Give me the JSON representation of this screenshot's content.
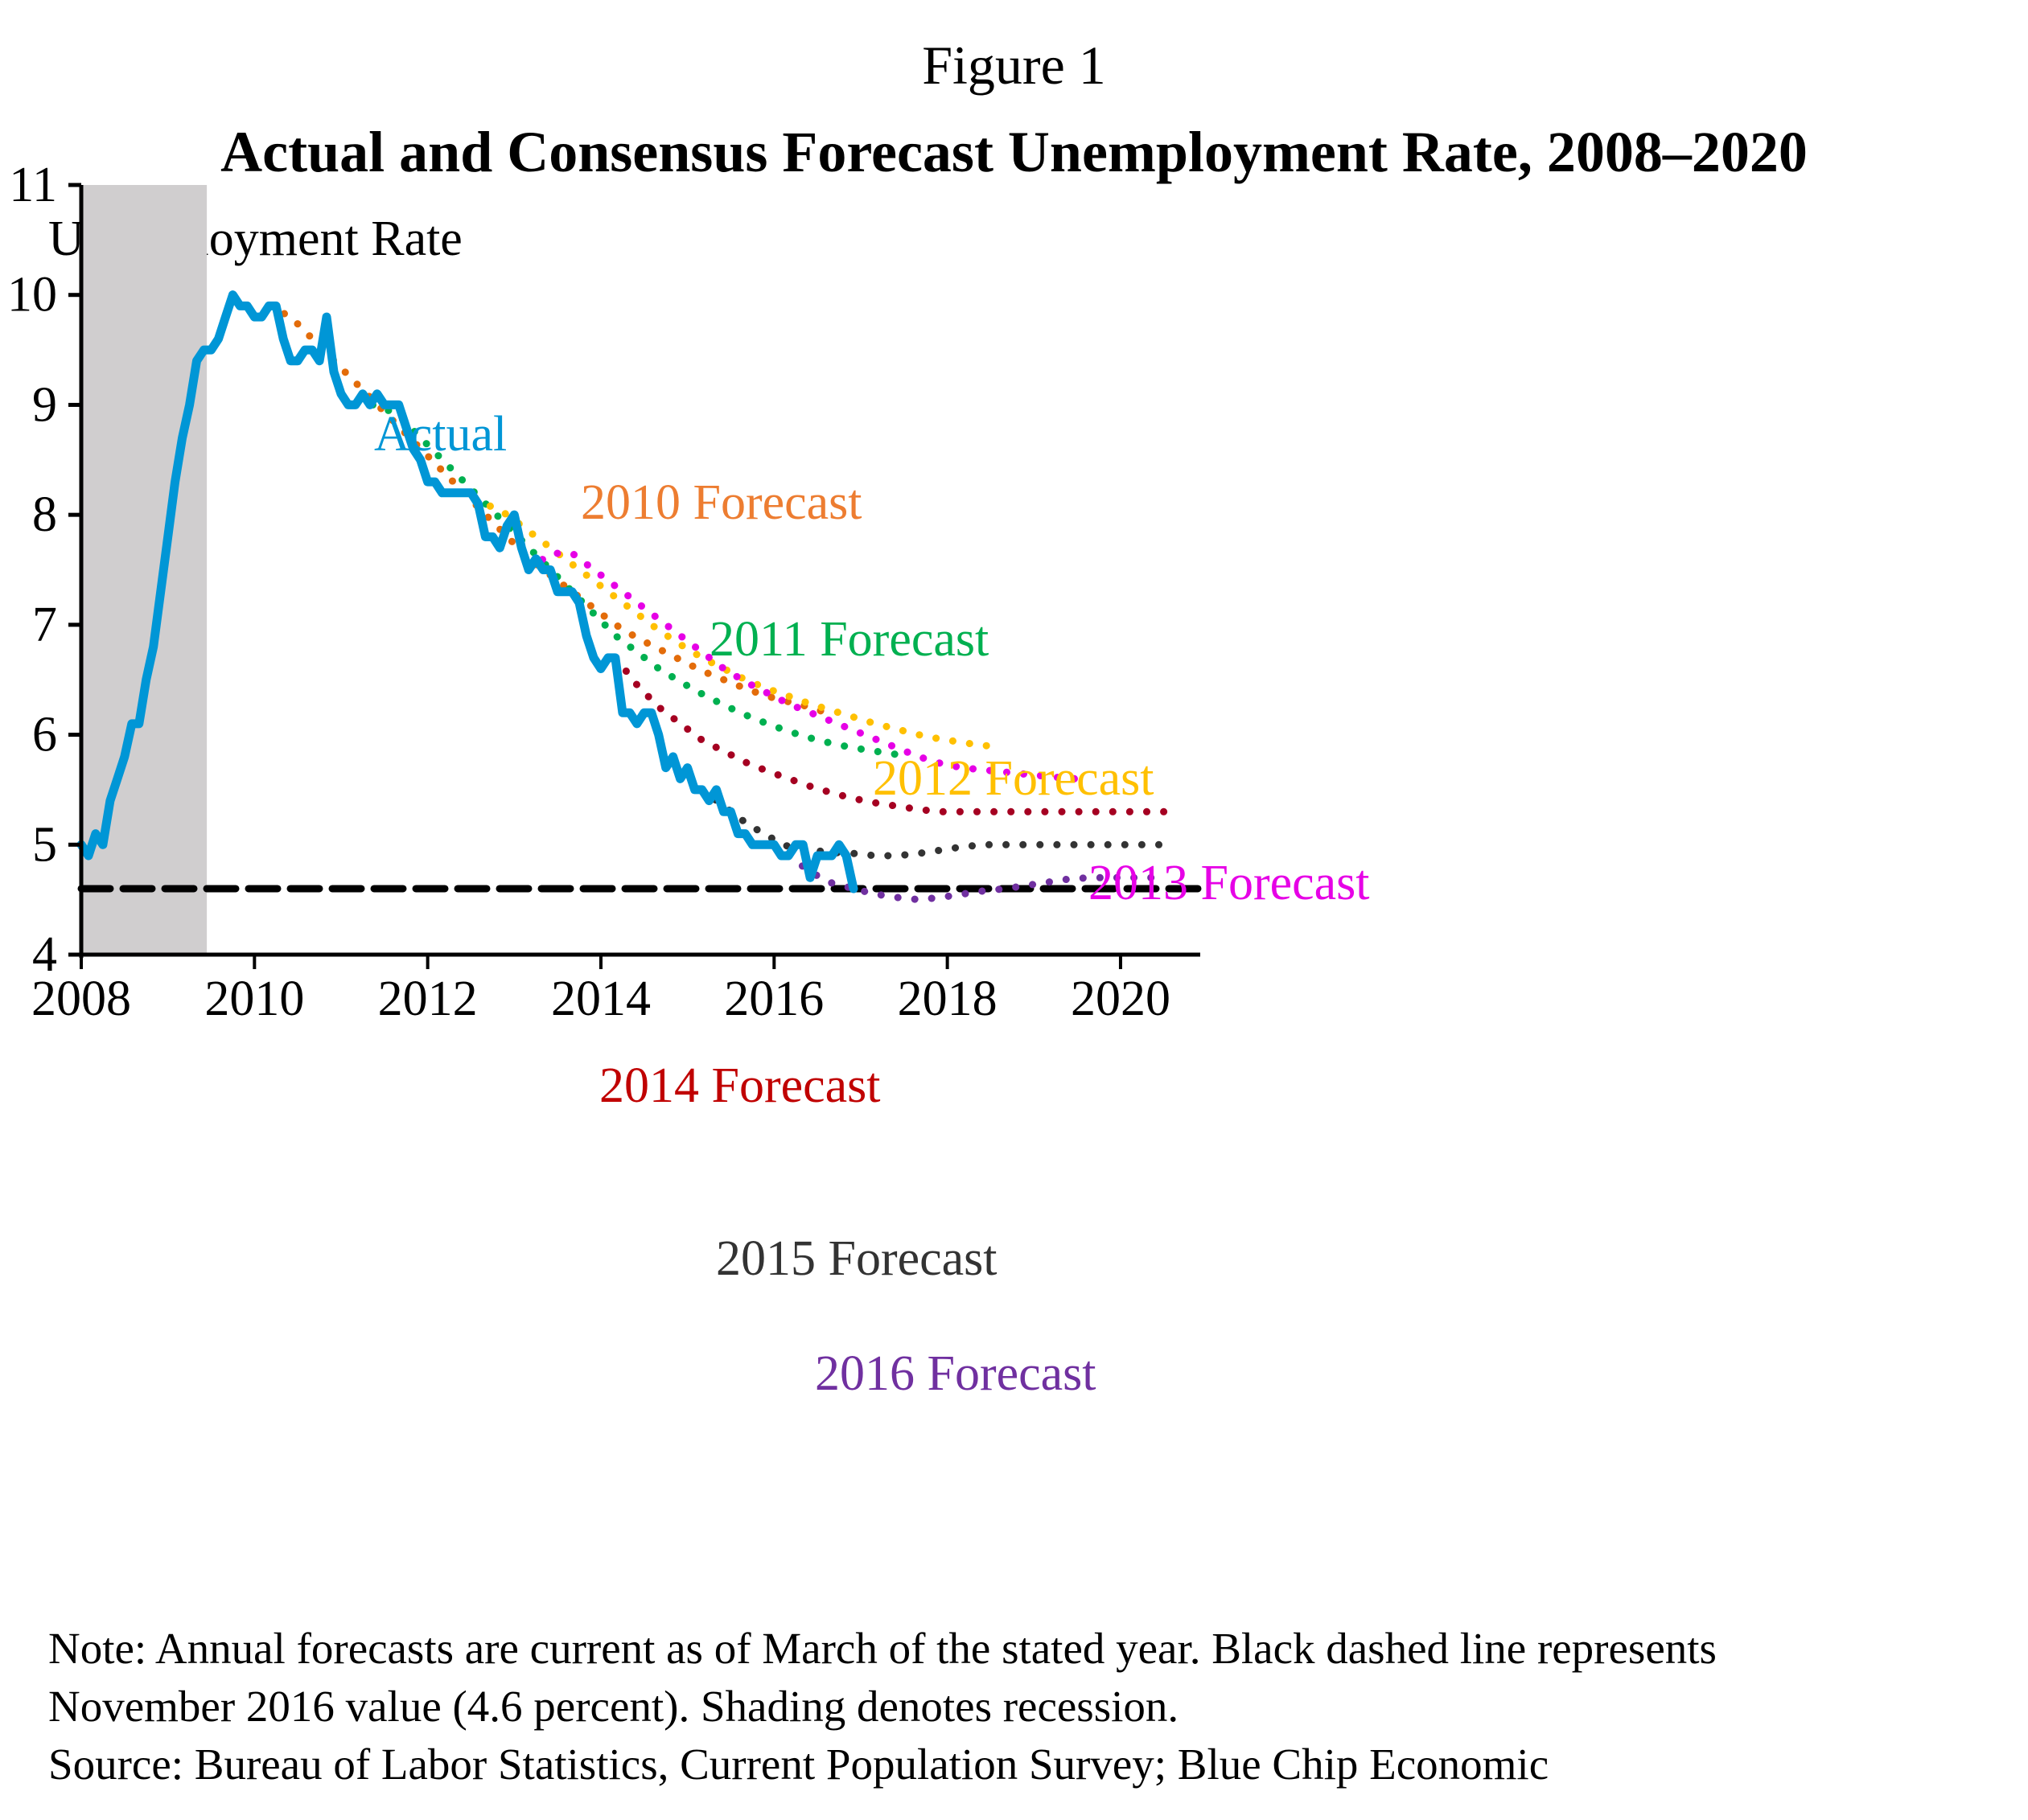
{
  "figure_number": "Figure 1",
  "chart_data": {
    "type": "line",
    "title": "Actual and Consensus Forecast Unemployment Rate, 2008–2020",
    "ylabel": "Unemployment Rate",
    "xlabel": "",
    "xlim": [
      2008,
      2020.92
    ],
    "ylim": [
      4,
      11
    ],
    "x_ticks": [
      2008,
      2010,
      2012,
      2014,
      2016,
      2018,
      2020
    ],
    "x_tick_labels": [
      "2008",
      "2010",
      "2012",
      "2014",
      "2016",
      "2018",
      "2020"
    ],
    "y_ticks": [
      4,
      5,
      6,
      7,
      8,
      9,
      10,
      11
    ],
    "y_tick_labels": [
      "4",
      "5",
      "6",
      "7",
      "8",
      "9",
      "10",
      "11"
    ],
    "grid": false,
    "legend": "inline labels",
    "recession_shading": {
      "start": 2008.0,
      "end": 2009.45,
      "color": "#d0cecf"
    },
    "reference_line": {
      "value": 4.6,
      "label": "November 2016 value (4.6 percent)",
      "color": "#000000",
      "style": "dashed"
    },
    "series": [
      {
        "name": "Actual",
        "label": "Actual",
        "style": "solid",
        "color": "#0096d6",
        "start": 2008.0,
        "step": 0.08333,
        "values": [
          5.0,
          4.9,
          5.1,
          5.0,
          5.4,
          5.6,
          5.8,
          6.1,
          6.1,
          6.5,
          6.8,
          7.3,
          7.8,
          8.3,
          8.7,
          9.0,
          9.4,
          9.5,
          9.5,
          9.6,
          9.8,
          10.0,
          9.9,
          9.9,
          9.8,
          9.8,
          9.9,
          9.9,
          9.6,
          9.4,
          9.4,
          9.5,
          9.5,
          9.4,
          9.8,
          9.3,
          9.1,
          9.0,
          9.0,
          9.1,
          9.0,
          9.1,
          9.0,
          9.0,
          9.0,
          8.8,
          8.6,
          8.5,
          8.3,
          8.3,
          8.2,
          8.2,
          8.2,
          8.2,
          8.2,
          8.1,
          7.8,
          7.8,
          7.7,
          7.9,
          8.0,
          7.7,
          7.5,
          7.6,
          7.5,
          7.5,
          7.3,
          7.3,
          7.3,
          7.2,
          6.9,
          6.7,
          6.6,
          6.7,
          6.7,
          6.2,
          6.2,
          6.1,
          6.2,
          6.2,
          6.0,
          5.7,
          5.8,
          5.6,
          5.7,
          5.5,
          5.5,
          5.4,
          5.5,
          5.3,
          5.3,
          5.1,
          5.1,
          5.0,
          5.0,
          5.0,
          5.0,
          4.9,
          4.9,
          5.0,
          5.0,
          4.7,
          4.9,
          4.9,
          4.9,
          5.0,
          4.9,
          4.6
        ]
      },
      {
        "name": "2010 Forecast",
        "label": "2010 Forecast",
        "style": "dotted",
        "color": "#e36c0a",
        "label_color": "#ed7d31",
        "x": [
          2010.17,
          2010.42,
          2010.67,
          2010.92,
          2011.17,
          2011.42,
          2011.67,
          2011.92,
          2012.17,
          2012.42,
          2012.67,
          2012.92,
          2013.17,
          2013.42,
          2013.67,
          2013.92,
          2014.17,
          2014.42,
          2014.67,
          2014.92,
          2015.17,
          2015.42,
          2015.67,
          2015.92,
          2016.17,
          2016.42,
          2016.6
        ],
        "y": [
          9.9,
          9.8,
          9.6,
          9.4,
          9.2,
          9.0,
          8.8,
          8.6,
          8.4,
          8.2,
          8.0,
          7.8,
          7.6,
          7.45,
          7.3,
          7.15,
          7.0,
          6.88,
          6.78,
          6.68,
          6.58,
          6.5,
          6.42,
          6.35,
          6.3,
          6.25,
          6.2
        ]
      },
      {
        "name": "2011 Forecast",
        "label": "2011 Forecast",
        "style": "dotted",
        "color": "#00b050",
        "label_color": "#00b050",
        "x": [
          2011.17,
          2011.42,
          2011.67,
          2011.92,
          2012.17,
          2012.42,
          2012.67,
          2012.92,
          2013.17,
          2013.42,
          2013.67,
          2013.92,
          2014.17,
          2014.42,
          2014.67,
          2014.92,
          2015.17,
          2015.42,
          2015.67,
          2015.92,
          2016.17,
          2016.42,
          2016.67,
          2016.92,
          2017.17,
          2017.42,
          2017.5
        ],
        "y": [
          9.0,
          9.0,
          8.9,
          8.7,
          8.5,
          8.3,
          8.1,
          7.9,
          7.7,
          7.5,
          7.3,
          7.1,
          6.9,
          6.75,
          6.6,
          6.48,
          6.37,
          6.27,
          6.18,
          6.1,
          6.03,
          5.97,
          5.92,
          5.88,
          5.85,
          5.82,
          5.8
        ]
      },
      {
        "name": "2012 Forecast",
        "label": "2012 Forecast",
        "style": "dotted",
        "color": "#ffc000",
        "label_color": "#ffc000",
        "x": [
          2012.17,
          2012.42,
          2012.67,
          2012.92,
          2013.17,
          2013.42,
          2013.67,
          2013.92,
          2014.17,
          2014.42,
          2014.67,
          2014.92,
          2015.17,
          2015.42,
          2015.67,
          2015.92,
          2016.17,
          2016.42,
          2016.67,
          2016.92,
          2017.17,
          2017.42,
          2017.67,
          2017.92,
          2018.17,
          2018.42,
          2018.5
        ],
        "y": [
          8.2,
          8.2,
          8.1,
          8.0,
          7.85,
          7.7,
          7.55,
          7.4,
          7.25,
          7.1,
          6.95,
          6.82,
          6.7,
          6.6,
          6.5,
          6.42,
          6.35,
          6.28,
          6.22,
          6.16,
          6.1,
          6.05,
          6.0,
          5.96,
          5.93,
          5.9,
          5.9
        ]
      },
      {
        "name": "2013 Forecast",
        "label": "2013 Forecast",
        "style": "dotted",
        "color": "#e600e6",
        "label_color": "#e600e6",
        "x": [
          2013.17,
          2013.42,
          2013.67,
          2013.92,
          2014.17,
          2014.42,
          2014.67,
          2014.92,
          2015.17,
          2015.42,
          2015.67,
          2015.92,
          2016.17,
          2016.42,
          2016.67,
          2016.92,
          2017.17,
          2017.42,
          2017.67,
          2017.92,
          2018.17,
          2018.42,
          2018.67,
          2018.92,
          2019.17,
          2019.42,
          2019.5
        ],
        "y": [
          7.5,
          7.65,
          7.65,
          7.5,
          7.35,
          7.2,
          7.05,
          6.9,
          6.75,
          6.6,
          6.48,
          6.38,
          6.28,
          6.2,
          6.12,
          6.04,
          5.96,
          5.88,
          5.8,
          5.74,
          5.7,
          5.68,
          5.66,
          5.64,
          5.62,
          5.6,
          5.6
        ]
      },
      {
        "name": "2014 Forecast",
        "label": "2014 Forecast",
        "style": "dotted",
        "color": "#a50021",
        "label_color": "#c00000",
        "x": [
          2014.17,
          2014.42,
          2014.67,
          2014.92,
          2015.17,
          2015.42,
          2015.67,
          2015.92,
          2016.17,
          2016.42,
          2016.67,
          2016.92,
          2017.17,
          2017.42,
          2017.67,
          2017.92,
          2018.17,
          2018.42,
          2018.67,
          2018.92,
          2019.17,
          2019.42,
          2019.67,
          2019.92,
          2020.17,
          2020.42,
          2020.5
        ],
        "y": [
          6.7,
          6.45,
          6.25,
          6.1,
          5.95,
          5.85,
          5.75,
          5.67,
          5.6,
          5.53,
          5.47,
          5.42,
          5.38,
          5.35,
          5.32,
          5.3,
          5.3,
          5.3,
          5.3,
          5.3,
          5.3,
          5.3,
          5.3,
          5.3,
          5.3,
          5.3,
          5.3
        ]
      },
      {
        "name": "2015 Forecast",
        "label": "2015 Forecast",
        "style": "dotted",
        "color": "#333333",
        "label_color": "#333333",
        "x": [
          2015.17,
          2015.42,
          2015.67,
          2015.92,
          2016.17,
          2016.42,
          2016.67,
          2016.92,
          2017.17,
          2017.42,
          2017.67,
          2017.92,
          2018.17,
          2018.42,
          2018.67,
          2018.92,
          2019.17,
          2019.42,
          2019.67,
          2019.92,
          2020.17,
          2020.42,
          2020.5
        ],
        "y": [
          5.5,
          5.35,
          5.2,
          5.08,
          4.98,
          4.95,
          4.93,
          4.92,
          4.9,
          4.9,
          4.92,
          4.95,
          4.98,
          5.0,
          5.0,
          5.0,
          5.0,
          5.0,
          5.0,
          5.0,
          5.0,
          5.0,
          5.0
        ]
      },
      {
        "name": "2016 Forecast",
        "label": "2016 Forecast",
        "style": "dotted",
        "color": "#7030a0",
        "label_color": "#7030a0",
        "x": [
          2016.17,
          2016.42,
          2016.67,
          2016.92,
          2017.17,
          2017.42,
          2017.67,
          2017.92,
          2018.17,
          2018.42,
          2018.67,
          2018.92,
          2019.17,
          2019.42,
          2019.67,
          2019.92,
          2020.17,
          2020.42,
          2020.5
        ],
        "y": [
          4.9,
          4.75,
          4.65,
          4.6,
          4.55,
          4.52,
          4.5,
          4.52,
          4.55,
          4.58,
          4.6,
          4.63,
          4.66,
          4.69,
          4.7,
          4.7,
          4.7,
          4.7,
          4.7
        ]
      }
    ]
  },
  "notes": {
    "line1": "Note: Annual forecasts are current as of March of the stated year. Black dashed line represents",
    "line2": "November 2016 value (4.6 percent). Shading denotes recession.",
    "line3": "Source: Bureau of Labor Statistics, Current Population Survey; Blue Chip Economic"
  }
}
